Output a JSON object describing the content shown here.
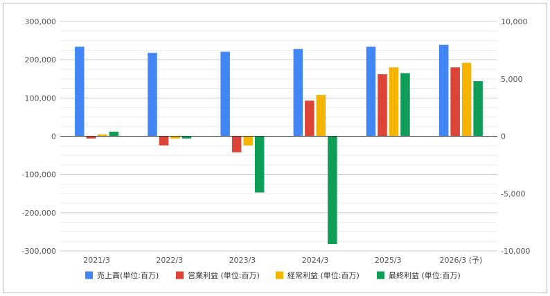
{
  "chart_data": {
    "type": "bar",
    "title": "",
    "xlabel": "",
    "ylabel": "",
    "categories": [
      "2021/3",
      "2022/3",
      "2023/3",
      "2024/3",
      "2025/3",
      "2026/3 (予)"
    ],
    "series": [
      {
        "name": "売上高(単位:百万)",
        "axis": "left",
        "color": "#4285f4",
        "values": [
          234000,
          218000,
          221000,
          228000,
          234000,
          239000
        ]
      },
      {
        "name": "営業利益 (単位:百万)",
        "axis": "right",
        "color": "#db4437",
        "values": [
          -200,
          -800,
          -1400,
          3100,
          5400,
          6000
        ]
      },
      {
        "name": "経常利益 (単位:百万)",
        "axis": "right",
        "color": "#f4b400",
        "values": [
          150,
          -200,
          -800,
          3600,
          6000,
          6400
        ]
      },
      {
        "name": "最終利益 (単位:百万)",
        "axis": "right",
        "color": "#0f9d58",
        "values": [
          400,
          -200,
          -4900,
          -9400,
          5500,
          4800
        ]
      }
    ],
    "y_left": {
      "min": -300000,
      "max": 300000,
      "ticks": [
        300000,
        200000,
        100000,
        0,
        -100000,
        -200000,
        -300000
      ],
      "tick_labels": [
        "300,000",
        "200,000",
        "100,000",
        "0",
        "-100,000",
        "-200,000",
        "-300,000"
      ]
    },
    "y_right": {
      "min": -10000,
      "max": 10000,
      "ticks": [
        10000,
        5000,
        0,
        -5000,
        -10000
      ],
      "tick_labels": [
        "10,000",
        "5,000",
        "0",
        "-5,000",
        "-10,000"
      ]
    },
    "grid": true,
    "legend_position": "bottom"
  }
}
